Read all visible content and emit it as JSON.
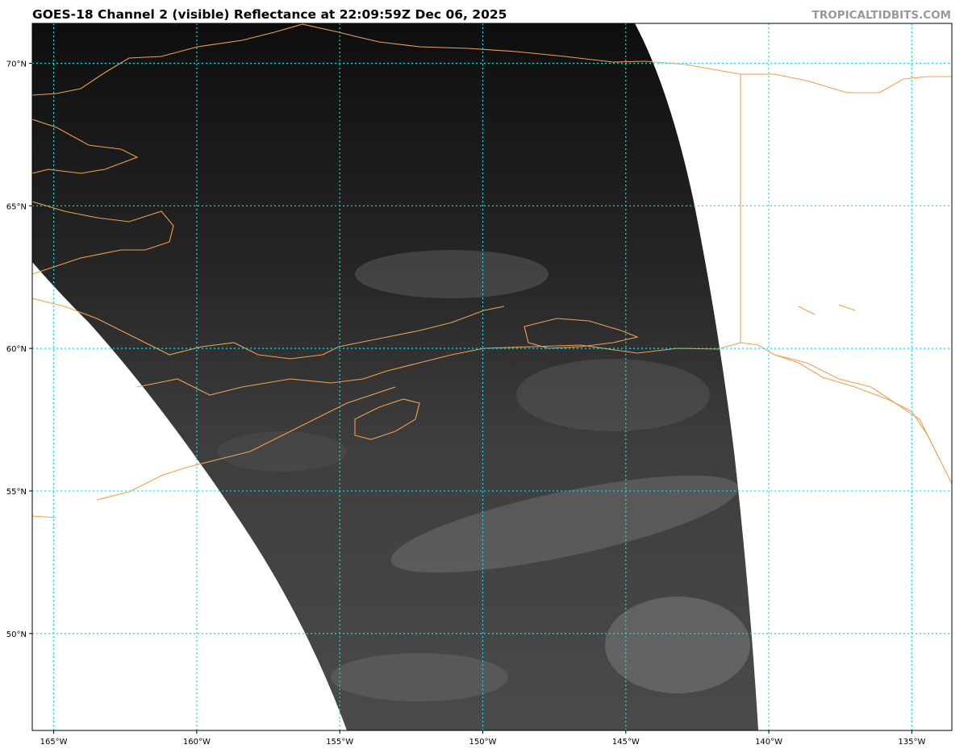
{
  "header": {
    "title": "GOES-18 Channel 2 (visible) Reflectance at 22:09:59Z Dec 06, 2025",
    "credit": "TROPICALTIDBITS.COM"
  },
  "map": {
    "projection": "geostationary satellite imagery on lat/lon grid",
    "extent": {
      "lon_min": -165.75,
      "lon_max": -133.6,
      "lat_min": 46.6,
      "lat_max": 71.4
    },
    "gridline_color": "#00e5ee",
    "coastline_color": "#f0a050",
    "longitudes": [
      {
        "value": -165,
        "label": "165°W"
      },
      {
        "value": -160,
        "label": "160°W"
      },
      {
        "value": -155,
        "label": "155°W"
      },
      {
        "value": -150,
        "label": "150°W"
      },
      {
        "value": -145,
        "label": "145°W"
      },
      {
        "value": -140,
        "label": "140°W"
      },
      {
        "value": -135,
        "label": "135°W"
      }
    ],
    "latitudes": [
      {
        "value": 70,
        "label": "70°N"
      },
      {
        "value": 65,
        "label": "65°N"
      },
      {
        "value": 60,
        "label": "60°N"
      },
      {
        "value": 55,
        "label": "55°N"
      },
      {
        "value": 50,
        "label": "50°N"
      }
    ]
  }
}
